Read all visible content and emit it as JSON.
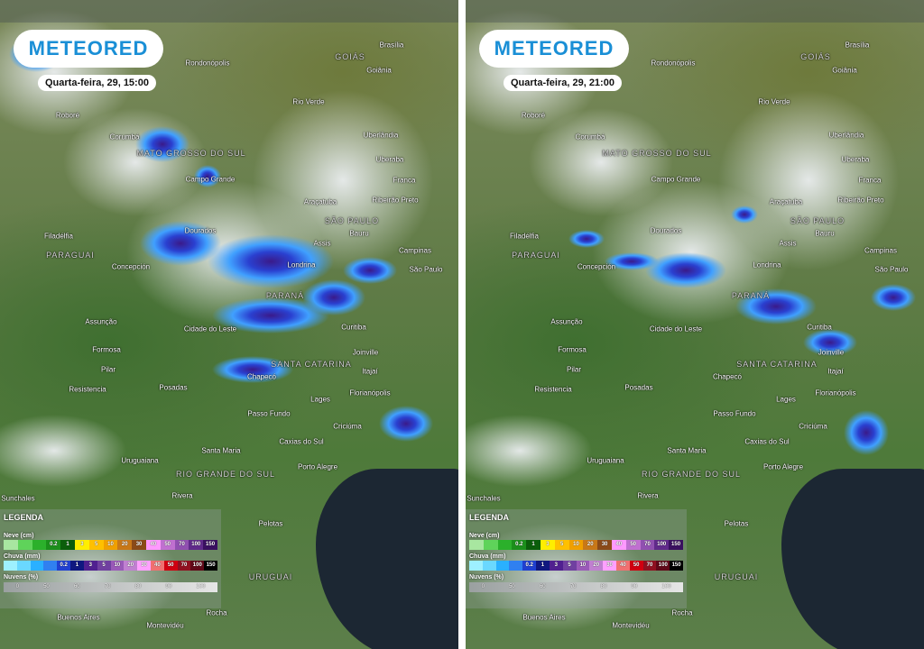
{
  "panels": [
    {
      "logo": "METEORED",
      "timestamp": "Quarta-feira, 29, 15:00"
    },
    {
      "logo": "METEORED",
      "timestamp": "Quarta-feira, 29, 21:00"
    }
  ],
  "cities": [
    "Brasília",
    "Rondonópolis",
    "Goiânia",
    "Roboré",
    "Rio Verde",
    "Corumbá",
    "Uberlândia",
    "MATO GROSSO DO SUL",
    "Uberaba",
    "Franca",
    "Campo Grande",
    "Araçatuba",
    "Ribeirão Preto",
    "SÃO PAULO",
    "Filadélfia",
    "Dourados",
    "Bauru",
    "Assis",
    "Campinas",
    "PARAGUAI",
    "Concepción",
    "Londrina",
    "São Paulo",
    "PARANÁ",
    "Assunção",
    "Cidade do Leste",
    "Curitiba",
    "Formosa",
    "Joinville",
    "Pilar",
    "Itajaí",
    "Chapecó",
    "SANTA CATARINA",
    "Resistencia",
    "Posadas",
    "Lages",
    "Florianópolis",
    "Passo Fundo",
    "Criciúma",
    "Caxias do Sul",
    "Uruguaiana",
    "Santa Maria",
    "RIO GRANDE DO SUL",
    "Porto Alegre",
    "Sunchales",
    "Rivera",
    "Pelotas",
    "Buenos Aires",
    "Montevidéu",
    "Rocha",
    "GOIÁS",
    "URUGUAI"
  ],
  "legend": {
    "title": "LEGENDA",
    "snow": {
      "label": "Neve (cm)",
      "ticks": [
        "0.2",
        "1",
        "3",
        "5",
        "10",
        "20",
        "30",
        "40",
        "50",
        "70",
        "100",
        "150"
      ],
      "colors": [
        "#a8e6a0",
        "#5fd35a",
        "#2bb02b",
        "#1b8f1b",
        "#0b5e0b",
        "#ffee00",
        "#ffc000",
        "#f0a000",
        "#c87818",
        "#8a4a18",
        "#ff99ff",
        "#c070d0",
        "#9050b0",
        "#602a8a",
        "#3a1060"
      ]
    },
    "rain": {
      "label": "Chuva (mm)",
      "ticks": [
        "0.2",
        "1",
        "3",
        "5",
        "10",
        "20",
        "30",
        "40",
        "50",
        "70",
        "100",
        "150"
      ],
      "colors": [
        "#9ef0ff",
        "#6ad8ff",
        "#2ab0ff",
        "#3080f0",
        "#2040d0",
        "#101880",
        "#502090",
        "#7040a0",
        "#9a5ab8",
        "#c080d0",
        "#ffa0ff",
        "#f07070",
        "#d00010",
        "#901020",
        "#600818",
        "#000000"
      ]
    },
    "clouds": {
      "label": "Nuvens (%)",
      "ticks": [
        "0",
        "50",
        "60",
        "70",
        "80",
        "90",
        "100"
      ]
    }
  }
}
